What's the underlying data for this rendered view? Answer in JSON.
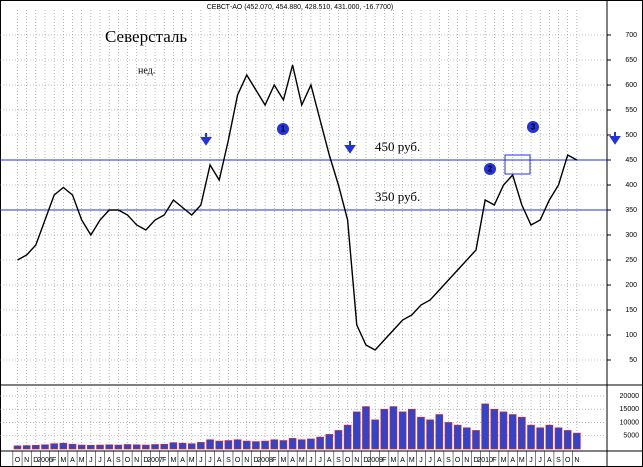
{
  "chart_data": {
    "type": "line",
    "title": "СЕВСТ-АО (452.070, 454.880, 428.510, 431.000, -16.7700)",
    "name_label": "Северсталь",
    "period_label": "нед.",
    "categories": [
      "O",
      "N",
      "D",
      "2006",
      "F",
      "M",
      "A",
      "M",
      "J",
      "J",
      "A",
      "S",
      "O",
      "N",
      "D",
      "2007",
      "F",
      "M",
      "A",
      "M",
      "J",
      "J",
      "A",
      "S",
      "O",
      "N",
      "D",
      "2008",
      "F",
      "M",
      "A",
      "M",
      "J",
      "J",
      "A",
      "S",
      "O",
      "N",
      "D",
      "2009",
      "F",
      "M",
      "A",
      "M",
      "J",
      "J",
      "A",
      "S",
      "O",
      "N",
      "D",
      "2010",
      "F",
      "M",
      "A",
      "M",
      "J",
      "J",
      "A",
      "S",
      "O",
      "N"
    ],
    "series": [
      {
        "name": "СЕВСТ-АО",
        "color": "#000000",
        "values": [
          250,
          260,
          280,
          330,
          380,
          395,
          380,
          330,
          300,
          330,
          350,
          350,
          340,
          320,
          310,
          330,
          340,
          370,
          355,
          340,
          360,
          440,
          410,
          490,
          580,
          620,
          590,
          560,
          600,
          570,
          640,
          560,
          600,
          530,
          460,
          400,
          330,
          120,
          80,
          70,
          90,
          110,
          130,
          140,
          160,
          170,
          190,
          210,
          230,
          250,
          270,
          370,
          360,
          400,
          420,
          360,
          320,
          330,
          370,
          400,
          460,
          450
        ]
      }
    ],
    "volume": {
      "color": "#3344cc",
      "edge": "#dd2222",
      "values": [
        1200,
        1300,
        1400,
        1600,
        2000,
        2200,
        1800,
        1500,
        1400,
        1500,
        1600,
        1500,
        1700,
        1600,
        1500,
        1700,
        1800,
        2400,
        2200,
        2000,
        2500,
        3500,
        3000,
        3200,
        3500,
        3000,
        2800,
        3000,
        3500,
        3200,
        4000,
        3500,
        3800,
        4500,
        5500,
        7000,
        9000,
        14000,
        16000,
        11000,
        15000,
        16000,
        14000,
        15000,
        12000,
        11000,
        13000,
        10000,
        9000,
        8000,
        7000,
        17000,
        15000,
        14000,
        13000,
        12000,
        9000,
        8000,
        9000,
        8000,
        7000,
        6000
      ],
      "ylim": [
        0,
        23000
      ],
      "yticks": [
        5000,
        10000,
        15000,
        20000
      ]
    },
    "ylim": [
      0,
      750
    ],
    "yticks": [
      50,
      100,
      150,
      200,
      250,
      300,
      350,
      400,
      450,
      500,
      550,
      600,
      650,
      700
    ],
    "grid": true,
    "levels": [
      {
        "value": 450,
        "label": "450 руб."
      },
      {
        "value": 350,
        "label": "350 руб."
      }
    ],
    "markers": [
      "1",
      "2",
      "3"
    ]
  }
}
